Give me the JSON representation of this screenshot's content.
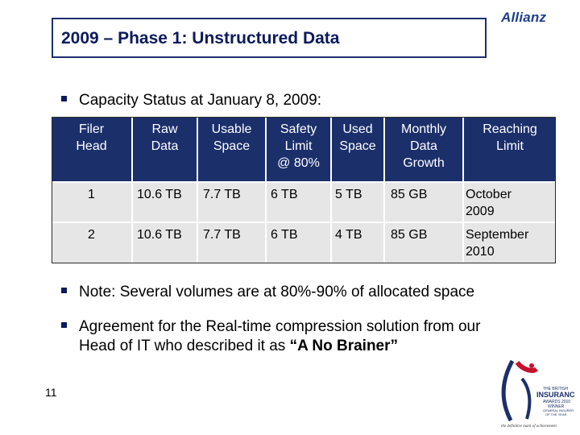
{
  "title": "2009 – Phase 1:  Unstructured Data",
  "logo_text": "Allianz",
  "intro": "Capacity Status at January 8, 2009:",
  "table": {
    "headers": [
      [
        "Filer",
        "Head"
      ],
      [
        "Raw",
        "Data"
      ],
      [
        "Usable",
        "Space"
      ],
      [
        "Safety",
        "Limit",
        "@ 80%"
      ],
      [
        "Used",
        "Space"
      ],
      [
        "Monthly",
        "Data",
        "Growth"
      ],
      [
        "Reaching",
        "Limit"
      ]
    ],
    "rows": [
      [
        "1",
        "10.6 TB",
        "7.7 TB",
        "6 TB",
        "5 TB",
        "85 GB",
        "October",
        "2009"
      ],
      [
        "2",
        "10.6 TB",
        "7.7 TB",
        "6 TB",
        "4 TB",
        "85 GB",
        "September",
        "2010"
      ]
    ]
  },
  "note": "Note: Several volumes are at 80%-90% of allocated space",
  "agreement": {
    "line1": "Agreement for the Real-time compression solution from our",
    "line2_prefix": "Head of IT who described it as ",
    "line2_quote": "“A No Brainer”"
  },
  "page_number": "11",
  "award": {
    "line1": "THE BRITISH",
    "line2": "INSURANCE",
    "line3": "AWARDS 2010",
    "line4": "WINNER",
    "line5": "GENERAL INSURER",
    "line6": "OF THE YEAR",
    "tagline": "the definitive mark of achievement"
  },
  "colors": {
    "title_text": "#0c1a5c",
    "header_bg": "#1b2f6b",
    "row_bg": "#e6e6e6",
    "logo": "#1f3f8f"
  }
}
